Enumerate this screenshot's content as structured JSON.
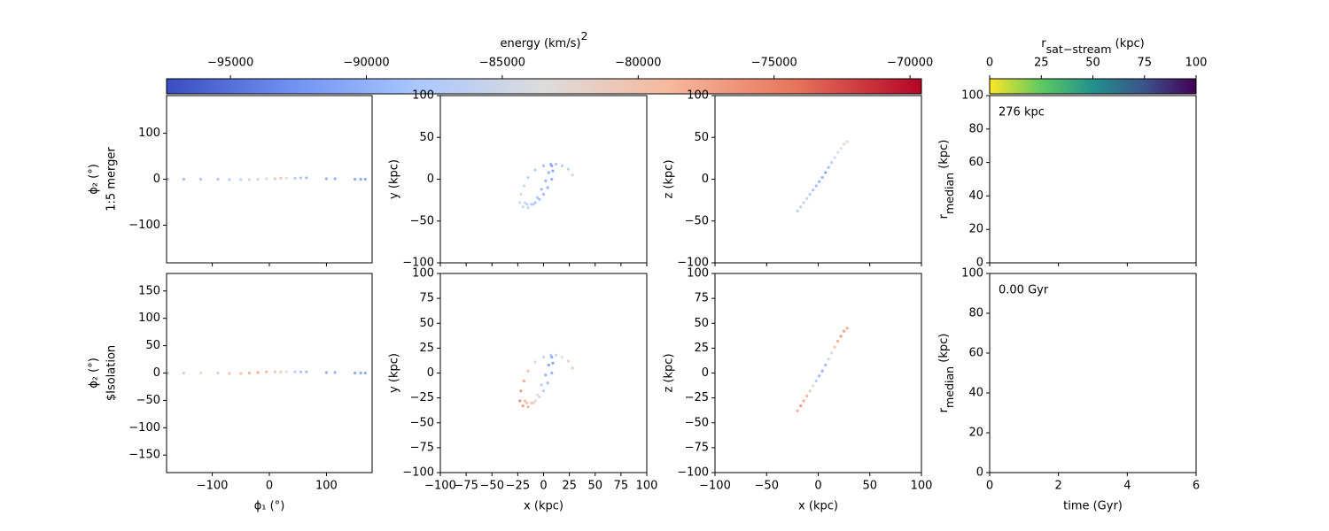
{
  "chart_data": [
    {
      "type": "colorbar",
      "label": {
        "text": "energy (km/s)",
        "sup": "2"
      },
      "xlim": [
        -97350,
        -69580
      ],
      "xticks": [
        {
          "value": -95000,
          "label": "−95000"
        },
        {
          "value": -90000,
          "label": "−90000"
        },
        {
          "value": -85000,
          "label": "−85000"
        },
        {
          "value": -80000,
          "label": "−80000"
        },
        {
          "value": -75000,
          "label": "−75000"
        },
        {
          "value": -70000,
          "label": "−70000"
        }
      ],
      "colors": [
        "#3b4cc0",
        "#6f92f3",
        "#aac7fd",
        "#dddcdc",
        "#f7b89c",
        "#e7745b",
        "#b40426"
      ]
    },
    {
      "type": "colorbar",
      "label": {
        "text": "r",
        "sub": "sat−stream",
        "tail": " (kpc)"
      },
      "xlim": [
        0,
        100
      ],
      "xticks": [
        0,
        25,
        50,
        75,
        100
      ],
      "colors": [
        "#fde725",
        "#5ec962",
        "#21918c",
        "#3b528b",
        "#440154"
      ]
    },
    {
      "type": "scatter",
      "ylabel": "ϕ₂ (°)",
      "row_label": "1:5 merger",
      "xlim": [
        -180,
        180
      ],
      "ylim": [
        -182,
        182
      ],
      "xticks": [
        {
          "value": -100,
          "label": "−100"
        },
        0,
        100
      ],
      "xticklabels": false,
      "yticks": [
        {
          "value": -100,
          "label": "−100"
        },
        0,
        100
      ],
      "series": [
        {
          "x": [
            -178,
            -150,
            -120,
            -90,
            -70,
            -50,
            -35,
            -20,
            -5,
            10,
            20,
            30,
            45,
            55,
            65,
            100,
            115,
            150,
            160,
            168
          ],
          "y": [
            0,
            0,
            0,
            0,
            -1,
            -1,
            -1,
            0,
            1,
            1,
            2,
            2,
            2,
            3,
            3,
            1,
            1,
            0,
            0,
            0
          ],
          "c": [
            -90000,
            -90000,
            -89000,
            -89000,
            -88000,
            -87000,
            -86000,
            -85000,
            -82000,
            -80000,
            -80000,
            -83000,
            -88000,
            -89000,
            -90000,
            -91000,
            -91000,
            -92000,
            -92000,
            -92000
          ]
        }
      ]
    },
    {
      "type": "scatter",
      "ylabel": "y (kpc)",
      "xlim": [
        -100,
        100
      ],
      "ylim": [
        -100,
        100
      ],
      "xticks": [
        {
          "value": -100,
          "label": "−100"
        },
        {
          "value": -75,
          "label": "−75"
        },
        {
          "value": -50,
          "label": "−50"
        },
        {
          "value": -25,
          "label": "−25"
        },
        0,
        25,
        50,
        75,
        100
      ],
      "xticklabels": false,
      "yticks": [
        {
          "value": -100,
          "label": "−100"
        },
        {
          "value": -50,
          "label": "−50"
        },
        0,
        50,
        100
      ],
      "series": [
        {
          "x": [
            28,
            24,
            18,
            12,
            7,
            0,
            -8,
            -15,
            -19,
            -22,
            -23,
            -20,
            -15,
            -10,
            -6,
            -2,
            2,
            5,
            8,
            9,
            8,
            4,
            0,
            -4,
            -8,
            -12,
            -16,
            -18
          ],
          "y": [
            5,
            12,
            16,
            18,
            18,
            16,
            11,
            2,
            -8,
            -18,
            -28,
            -33,
            -34,
            -30,
            -22,
            -12,
            -2,
            8,
            16,
            10,
            0,
            -10,
            -18,
            -24,
            -28,
            -30,
            -30,
            -28
          ],
          "c": [
            -86000,
            -87000,
            -88000,
            -89000,
            -90000,
            -89000,
            -88000,
            -87000,
            -86000,
            -85000,
            -85000,
            -86000,
            -87000,
            -88000,
            -89000,
            -90000,
            -91000,
            -91000,
            -92000,
            -92000,
            -91000,
            -91000,
            -90000,
            -90000,
            -89000,
            -88000,
            -87000,
            -86000
          ]
        }
      ]
    },
    {
      "type": "scatter",
      "ylabel": "z (kpc)",
      "xlim": [
        -100,
        100
      ],
      "ylim": [
        -100,
        100
      ],
      "xticks": [
        {
          "value": -100,
          "label": "−100"
        },
        {
          "value": -50,
          "label": "−50"
        },
        0,
        50,
        100
      ],
      "xticklabels": false,
      "yticks": [
        {
          "value": -100,
          "label": "−100"
        },
        {
          "value": -50,
          "label": "−50"
        },
        0,
        50,
        100
      ],
      "series": [
        {
          "x": [
            -20,
            -17,
            -14,
            -11,
            -8,
            -5,
            -2,
            1,
            4,
            7,
            10,
            13,
            16,
            19,
            22,
            25,
            28
          ],
          "y": [
            -38,
            -33,
            -28,
            -23,
            -18,
            -13,
            -8,
            -3,
            2,
            8,
            14,
            20,
            26,
            32,
            37,
            42,
            45
          ],
          "c": [
            -88000,
            -87000,
            -86000,
            -87000,
            -88000,
            -89000,
            -90000,
            -91000,
            -91000,
            -92000,
            -90000,
            -88000,
            -86000,
            -84000,
            -83000,
            -82000,
            -82000
          ]
        }
      ]
    },
    {
      "type": "line",
      "ylabel": {
        "text": "r",
        "sub": "median",
        "tail": " (kpc)"
      },
      "annotation": "276 kpc",
      "xlim": [
        0,
        6
      ],
      "ylim": [
        0,
        100
      ],
      "xticks": [
        0,
        2,
        4,
        6
      ],
      "xticklabels": false,
      "yticks": [
        0,
        20,
        40,
        60,
        80,
        100
      ],
      "series": []
    },
    {
      "type": "scatter",
      "ylabel": "ϕ₂ (°)",
      "row_label": "$Isolation",
      "xlabel": "ϕ₁ (°)",
      "xlim": [
        -180,
        180
      ],
      "ylim": [
        -182,
        182
      ],
      "xticks": [
        {
          "value": -100,
          "label": "−100"
        },
        0,
        100
      ],
      "yticks": [
        {
          "value": -150,
          "label": "−150"
        },
        {
          "value": -100,
          "label": "−100"
        },
        {
          "value": -50,
          "label": "−50"
        },
        0,
        50,
        100,
        150
      ],
      "series": [
        {
          "x": [
            -178,
            -150,
            -120,
            -90,
            -70,
            -50,
            -35,
            -20,
            -5,
            10,
            20,
            30,
            45,
            55,
            65,
            100,
            115,
            150,
            160,
            168
          ],
          "y": [
            0,
            0,
            0,
            0,
            -1,
            -1,
            0,
            1,
            2,
            2,
            2,
            2,
            2,
            2,
            2,
            1,
            1,
            0,
            0,
            0
          ],
          "c": [
            -88000,
            -87000,
            -82000,
            -80000,
            -79000,
            -79000,
            -78000,
            -77000,
            -78000,
            -79000,
            -80000,
            -84000,
            -88000,
            -89000,
            -90000,
            -91000,
            -91000,
            -92000,
            -92000,
            -92000
          ]
        }
      ]
    },
    {
      "type": "scatter",
      "ylabel": "y (kpc)",
      "xlabel": "x (kpc)",
      "xlim": [
        -100,
        100
      ],
      "ylim": [
        -100,
        100
      ],
      "xticks": [
        {
          "value": -100,
          "label": "−100"
        },
        {
          "value": -75,
          "label": "−75"
        },
        {
          "value": -50,
          "label": "−50"
        },
        {
          "value": -25,
          "label": "−25"
        },
        0,
        25,
        50,
        75,
        100
      ],
      "yticks": [
        {
          "value": -100,
          "label": "−100"
        },
        {
          "value": -75,
          "label": "−75"
        },
        {
          "value": -50,
          "label": "−50"
        },
        {
          "value": -25,
          "label": "−25"
        },
        0,
        25,
        50,
        75,
        100
      ],
      "series": [
        {
          "x": [
            28,
            24,
            18,
            12,
            7,
            0,
            -8,
            -15,
            -19,
            -22,
            -23,
            -20,
            -15,
            -10,
            -6,
            -2,
            2,
            5,
            8,
            9,
            8,
            4,
            0,
            -4,
            -8,
            -12,
            -16,
            -18
          ],
          "y": [
            5,
            12,
            16,
            18,
            18,
            16,
            11,
            2,
            -8,
            -18,
            -28,
            -33,
            -34,
            -30,
            -22,
            -12,
            -2,
            8,
            16,
            10,
            0,
            -10,
            -18,
            -24,
            -28,
            -30,
            -30,
            -28
          ],
          "c": [
            -80000,
            -81000,
            -83000,
            -86000,
            -88000,
            -86000,
            -82000,
            -79000,
            -77000,
            -76000,
            -75000,
            -76000,
            -78000,
            -80000,
            -84000,
            -88000,
            -91000,
            -92000,
            -92000,
            -92000,
            -91000,
            -90000,
            -88000,
            -85000,
            -82000,
            -80000,
            -79000,
            -78000
          ]
        }
      ]
    },
    {
      "type": "scatter",
      "ylabel": "z (kpc)",
      "xlabel": "x (kpc)",
      "xlim": [
        -100,
        100
      ],
      "ylim": [
        -100,
        100
      ],
      "xticks": [
        {
          "value": -100,
          "label": "−100"
        },
        {
          "value": -50,
          "label": "−50"
        },
        0,
        50,
        100
      ],
      "yticks": [
        {
          "value": -100,
          "label": "−100"
        },
        {
          "value": -75,
          "label": "−75"
        },
        {
          "value": -50,
          "label": "−50"
        },
        {
          "value": -25,
          "label": "−25"
        },
        0,
        25,
        50,
        75,
        100
      ],
      "series": [
        {
          "x": [
            -20,
            -17,
            -14,
            -11,
            -8,
            -5,
            -2,
            1,
            4,
            7,
            10,
            13,
            16,
            19,
            22,
            25,
            28
          ],
          "y": [
            -38,
            -33,
            -28,
            -23,
            -18,
            -13,
            -8,
            -3,
            2,
            8,
            14,
            20,
            26,
            32,
            37,
            42,
            45
          ],
          "c": [
            -77000,
            -76000,
            -77000,
            -78000,
            -80000,
            -84000,
            -88000,
            -90000,
            -91000,
            -90000,
            -86000,
            -82000,
            -79000,
            -77000,
            -76000,
            -76000,
            -77000
          ]
        }
      ]
    },
    {
      "type": "line",
      "ylabel": {
        "text": "r",
        "sub": "median",
        "tail": " (kpc)"
      },
      "xlabel": "time (Gyr)",
      "annotation": "0.00 Gyr",
      "xlim": [
        0,
        6
      ],
      "ylim": [
        0,
        100
      ],
      "xticks": [
        0,
        2,
        4,
        6
      ],
      "yticks": [
        0,
        20,
        40,
        60,
        80,
        100
      ],
      "series": []
    }
  ]
}
